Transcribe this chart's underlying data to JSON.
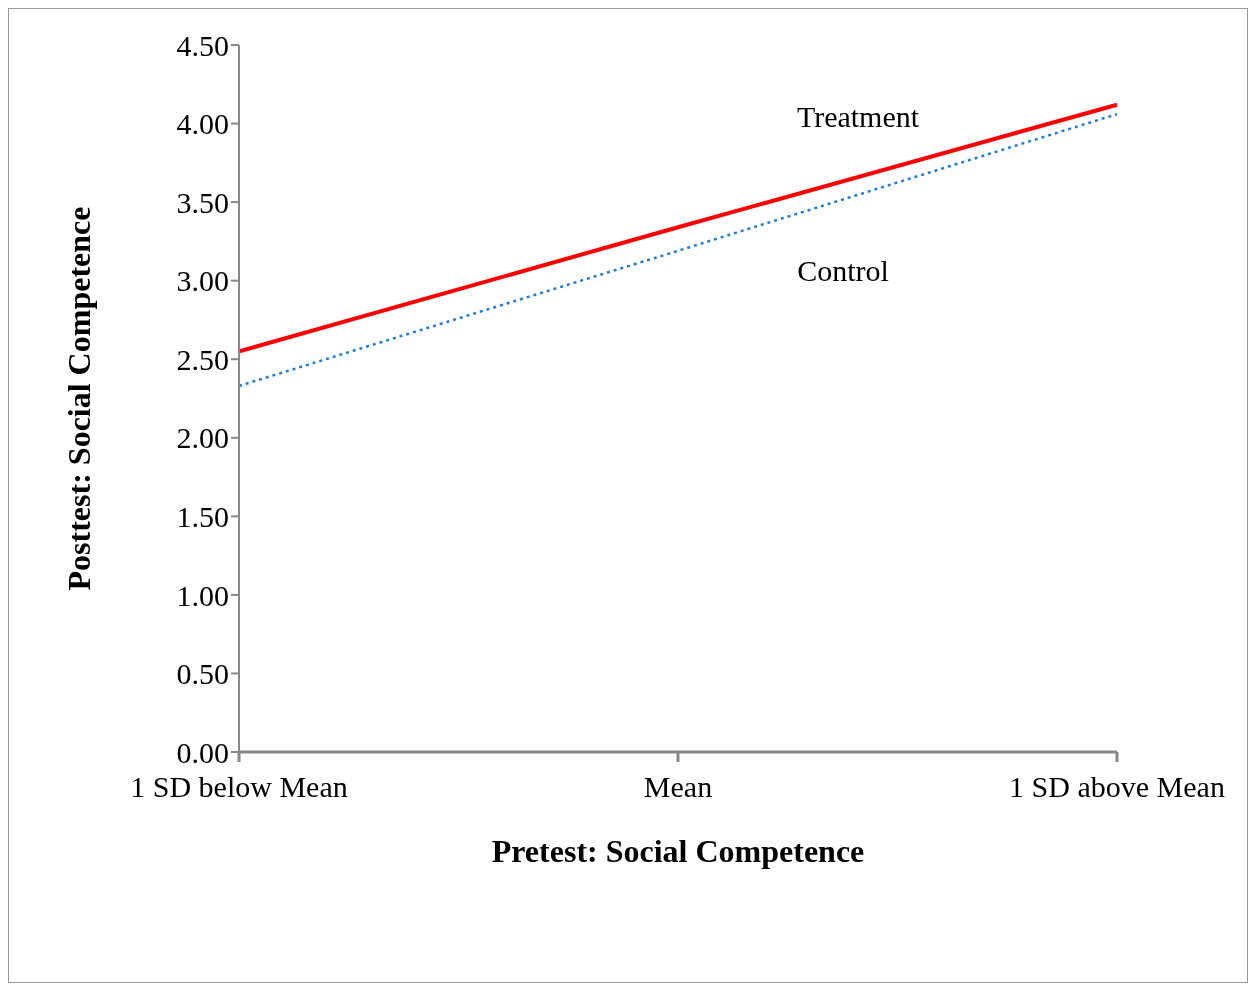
{
  "chart_data": {
    "type": "line",
    "xlabel": "Pretest:  Social Competence",
    "ylabel": "Posttest:  Social Competence",
    "categories": [
      "1 SD below Mean",
      "Mean",
      "1 SD above Mean"
    ],
    "series": [
      {
        "name": "Treatment",
        "color": "#ff0000",
        "line_style": "solid",
        "values": [
          2.55,
          3.34,
          4.12
        ]
      },
      {
        "name": "Control",
        "color": "#1f7fd0",
        "line_style": "dotted",
        "values": [
          2.33,
          3.19,
          4.06
        ]
      }
    ],
    "ylim": [
      0,
      4.5
    ],
    "yticks": [
      {
        "value": 0,
        "label": "0.00"
      },
      {
        "value": 0.5,
        "label": "0.50"
      },
      {
        "value": 1,
        "label": "1.00"
      },
      {
        "value": 1.5,
        "label": "1.50"
      },
      {
        "value": 2,
        "label": "2.00"
      },
      {
        "value": 2.5,
        "label": "2.50"
      },
      {
        "value": 3,
        "label": "3.00"
      },
      {
        "value": 3.5,
        "label": "3.50"
      },
      {
        "value": 4,
        "label": "4.00"
      },
      {
        "value": 4.5,
        "label": "4.50"
      }
    ],
    "grid": false,
    "legend": false,
    "marker": "none"
  }
}
